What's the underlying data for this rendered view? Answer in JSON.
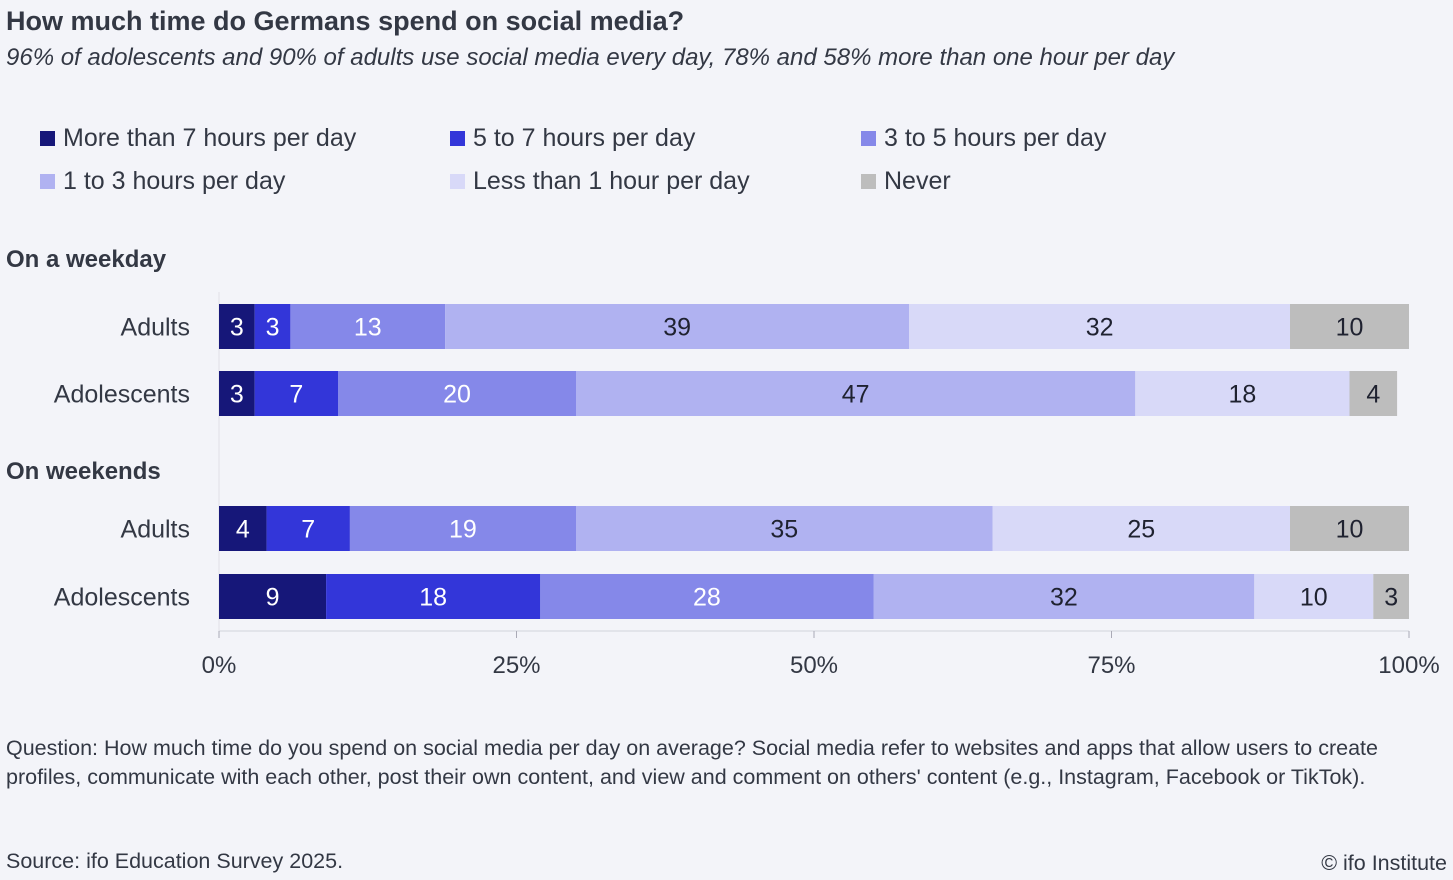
{
  "header": {
    "title": "How much time do Germans spend on social media?",
    "subtitle": "96% of adolescents and 90% of adults use social media every day, 78% and 58% more than one hour per day"
  },
  "chart_data": {
    "type": "bar",
    "orientation": "horizontal-stacked",
    "title": "How much time do Germans spend on social media?",
    "xlim": [
      0,
      100
    ],
    "x_ticks": [
      "0%",
      "25%",
      "50%",
      "75%",
      "100%"
    ],
    "x_tick_values": [
      0,
      25,
      50,
      75,
      100
    ],
    "legend_placement": "top",
    "series": [
      {
        "name": "More than 7 hours per day",
        "color": "#161779",
        "text_color": "#ffffff"
      },
      {
        "name": "5 to 7 hours per day",
        "color": "#3336d9",
        "text_color": "#ffffff"
      },
      {
        "name": "3 to 5 hours per day",
        "color": "#8588e9",
        "text_color": "#ffffff"
      },
      {
        "name": "1 to 3 hours per day",
        "color": "#b0b2f1",
        "text_color": "#1f2230"
      },
      {
        "name": "Less than 1 hour per day",
        "color": "#d8d9f8",
        "text_color": "#1f2230"
      },
      {
        "name": "Never",
        "color": "#bdbdbd",
        "text_color": "#1f2230"
      }
    ],
    "groups": [
      {
        "label": "On a weekday",
        "rows": [
          {
            "label": "Adults",
            "values": [
              3,
              3,
              13,
              39,
              32,
              10
            ]
          },
          {
            "label": "Adolescents",
            "values": [
              3,
              7,
              20,
              47,
              18,
              4
            ]
          }
        ]
      },
      {
        "label": "On weekends",
        "rows": [
          {
            "label": "Adults",
            "values": [
              4,
              7,
              19,
              35,
              25,
              10
            ]
          },
          {
            "label": "Adolescents",
            "values": [
              9,
              18,
              28,
              32,
              10,
              3
            ]
          }
        ]
      }
    ]
  },
  "footer": {
    "question": "Question: How much time do you spend on social media per day on average? Social media refer to websites and apps that allow users to create profiles, communicate with each other, post their own content, and view and comment on others' content (e.g., Instagram, Facebook or TikTok).",
    "source": "Source: ifo Education Survey 2025.",
    "copyright": "© ifo Institute"
  }
}
